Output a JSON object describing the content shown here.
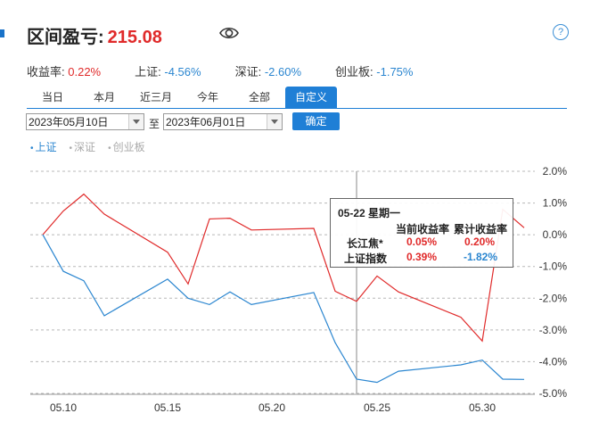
{
  "header": {
    "title": "区间盈亏:",
    "amount": "215.08",
    "help": "?"
  },
  "stats": [
    {
      "label": "收益率:",
      "value": "0.22%",
      "tone": "red"
    },
    {
      "label": "上证:",
      "value": "-4.56%",
      "tone": "blue"
    },
    {
      "label": "深证:",
      "value": "-2.60%",
      "tone": "blue"
    },
    {
      "label": "创业板:",
      "value": "-1.75%",
      "tone": "blue"
    }
  ],
  "tabs": [
    "当日",
    "本月",
    "近三月",
    "今年",
    "全部",
    "自定义"
  ],
  "active_tab": "自定义",
  "date_range": {
    "start": "2023年05月10日",
    "sep": "至",
    "end": "2023年06月01日",
    "confirm": "确定"
  },
  "legend": [
    {
      "name": "上证",
      "active": true
    },
    {
      "name": "深证",
      "active": false
    },
    {
      "name": "创业板",
      "active": false
    }
  ],
  "colors": {
    "accent": "#1f7fd6",
    "red": "#e02a2a",
    "blue": "#2b86d0"
  },
  "tooltip": {
    "title": "05-22 星期一",
    "col1": "当前收益率",
    "col2": "累计收益率",
    "rows": [
      {
        "name": "长江焦*",
        "current": "0.05%",
        "cumulative": "0.20%"
      },
      {
        "name": "上证指数",
        "current": "0.39%",
        "cumulative": "-1.82%"
      }
    ]
  },
  "chart_data": {
    "type": "line",
    "x": [
      "05-09",
      "05-10",
      "05-11",
      "05-12",
      "05-15",
      "05-16",
      "05-17",
      "05-18",
      "05-19",
      "05-22",
      "05-23",
      "05-24",
      "05-25",
      "05-26",
      "05-29",
      "05-30",
      "05-31",
      "06-01"
    ],
    "x_tick_labels": [
      "05.10",
      "05.15",
      "05.20",
      "05.25",
      "05.30"
    ],
    "ylim": [
      -5.0,
      2.0
    ],
    "y_tick_labels": [
      "2.0%",
      "1.0%",
      "0.0%",
      "-1.0%",
      "-2.0%",
      "-3.0%",
      "-4.0%",
      "-5.0%"
    ],
    "series": [
      {
        "color": "#e02a2a",
        "values": [
          0.0,
          0.75,
          1.28,
          0.65,
          -0.55,
          -1.55,
          0.5,
          0.52,
          0.15,
          0.2,
          -1.78,
          -2.1,
          -1.3,
          -1.8,
          -2.6,
          -3.35,
          0.8,
          0.22
        ]
      },
      {
        "name": "上证",
        "color": "#2b86d0",
        "values": [
          0.0,
          -1.15,
          -1.45,
          -2.55,
          -1.4,
          -2.0,
          -2.2,
          -1.8,
          -2.2,
          -1.82,
          -3.4,
          -4.55,
          -4.65,
          -4.3,
          -4.1,
          -3.95,
          -4.55,
          -4.56
        ]
      }
    ],
    "highlight_x": "05-22"
  }
}
